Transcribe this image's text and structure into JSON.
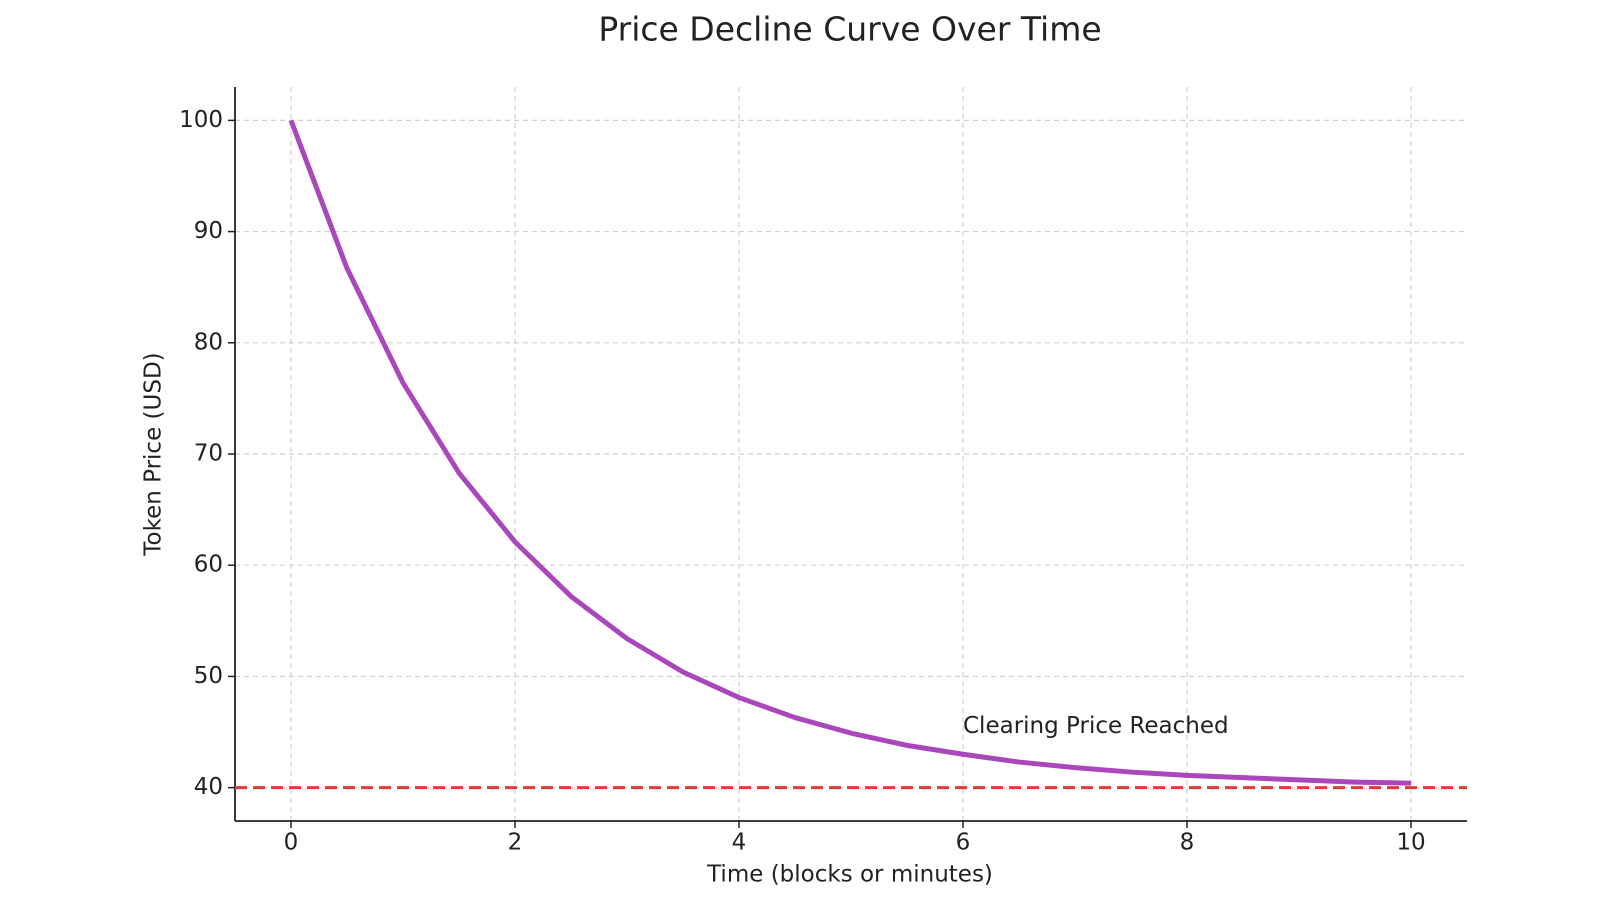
{
  "chart_data": {
    "type": "line",
    "title": "Price Decline Curve Over Time",
    "xlabel": "Time (blocks or minutes)",
    "ylabel": "Token Price (USD)",
    "x": [
      0,
      0.5,
      1,
      1.5,
      2,
      2.5,
      3,
      3.5,
      4,
      4.5,
      5,
      5.5,
      6,
      6.5,
      7,
      7.5,
      8,
      8.5,
      9,
      9.5,
      10
    ],
    "series": [
      {
        "color": "#ab47bc",
        "values": [
          100,
          86.7,
          76.4,
          68.3,
          62.1,
          57.2,
          53.4,
          50.4,
          48.1,
          46.3,
          44.9,
          43.8,
          43.0,
          42.3,
          41.8,
          41.4,
          41.1,
          40.9,
          40.7,
          40.5,
          40.4
        ]
      }
    ],
    "hline": {
      "value": 40,
      "color": "#e53935"
    },
    "annotation": {
      "text": "Clearing Price Reached",
      "x": 6,
      "y": 45.5
    },
    "xlim": [
      -0.5,
      10.5
    ],
    "ylim": [
      37,
      103
    ],
    "xticks": [
      0,
      2,
      4,
      6,
      8,
      10
    ],
    "yticks": [
      40,
      50,
      60,
      70,
      80,
      90,
      100
    ],
    "grid": true
  }
}
